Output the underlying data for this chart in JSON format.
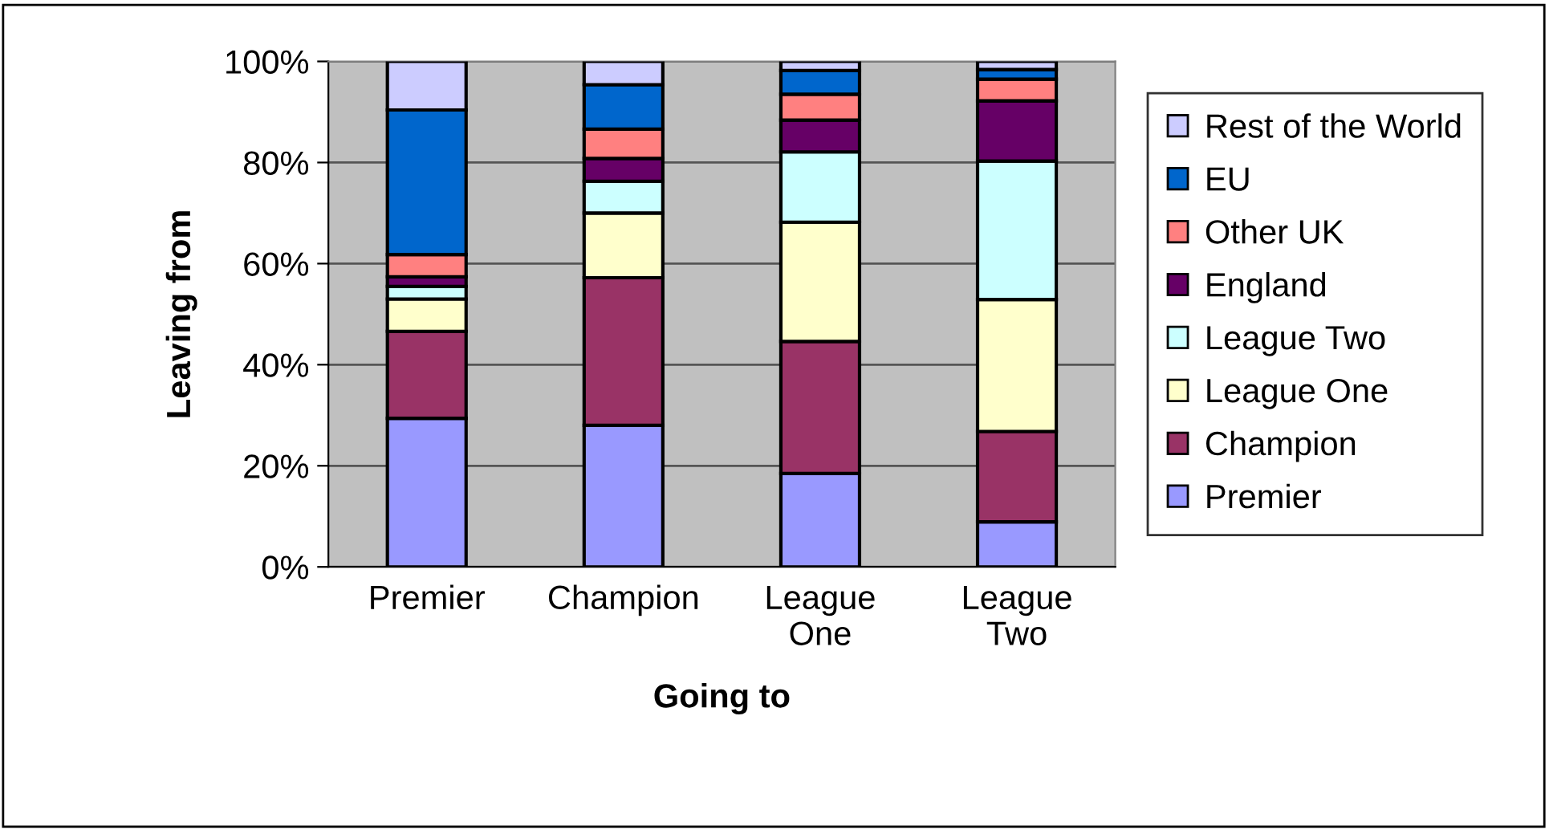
{
  "chart_data": {
    "type": "bar",
    "stacked": true,
    "xlabel": "Going to",
    "ylabel": "Leaving from",
    "categories": [
      "Premier",
      "Champion",
      "League\nOne",
      "League\nTwo"
    ],
    "series": [
      {
        "name": "Premier",
        "color": "#9999ff",
        "values": [
          29.4,
          28.0,
          18.5,
          8.9
        ]
      },
      {
        "name": "Champion",
        "color": "#993366",
        "values": [
          17.2,
          29.2,
          26.1,
          17.9
        ]
      },
      {
        "name": "League One",
        "color": "#ffffcc",
        "values": [
          6.4,
          12.8,
          23.6,
          26.1
        ]
      },
      {
        "name": "League Two",
        "color": "#ccffff",
        "values": [
          2.5,
          6.3,
          13.9,
          27.4
        ]
      },
      {
        "name": "England",
        "color": "#660066",
        "values": [
          1.9,
          4.5,
          6.3,
          11.9
        ]
      },
      {
        "name": "Other UK",
        "color": "#ff8080",
        "values": [
          4.4,
          5.8,
          5.1,
          4.3
        ]
      },
      {
        "name": "EU",
        "color": "#0066cc",
        "values": [
          28.6,
          8.8,
          4.7,
          1.9
        ]
      },
      {
        "name": "Rest of the World",
        "color": "#ccccff",
        "values": [
          9.6,
          4.6,
          1.8,
          1.6
        ]
      }
    ],
    "ylim": [
      0,
      100
    ],
    "yticks": [
      {
        "value": 0,
        "label": "0%"
      },
      {
        "value": 20,
        "label": "20%"
      },
      {
        "value": 40,
        "label": "40%"
      },
      {
        "value": 60,
        "label": "60%"
      },
      {
        "value": 80,
        "label": "80%"
      },
      {
        "value": 100,
        "label": "100%"
      }
    ],
    "grid": "y",
    "legend": "right"
  }
}
